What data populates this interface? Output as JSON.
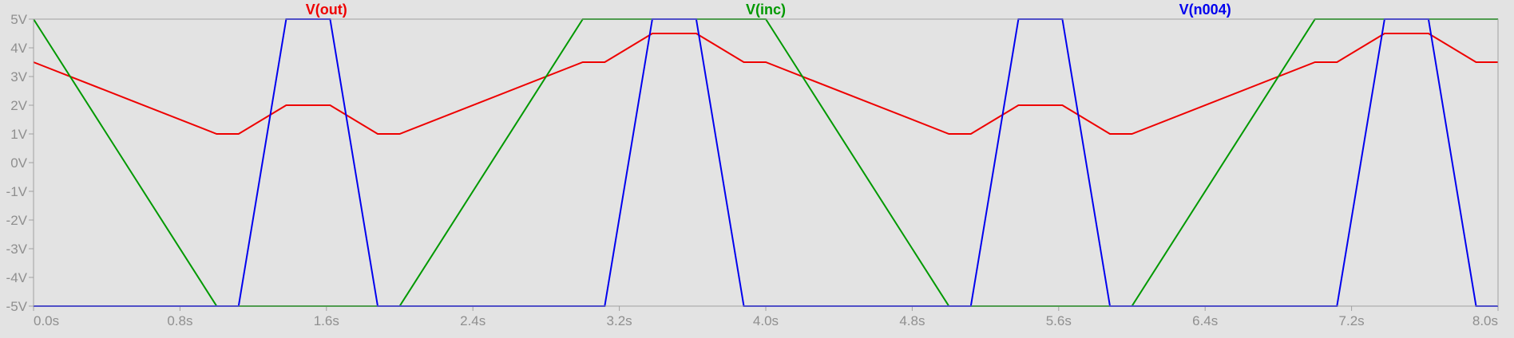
{
  "chart_data": {
    "type": "line",
    "background": "#e3e3e3",
    "grid": false,
    "x_unit": "s",
    "y_unit": "V",
    "xlim": [
      0,
      8
    ],
    "ylim": [
      -5,
      5
    ],
    "x_ticks": [
      {
        "value": 0.0,
        "label": "0.0s"
      },
      {
        "value": 0.8,
        "label": "0.8s"
      },
      {
        "value": 1.6,
        "label": "1.6s"
      },
      {
        "value": 2.4,
        "label": "2.4s"
      },
      {
        "value": 3.2,
        "label": "3.2s"
      },
      {
        "value": 4.0,
        "label": "4.0s"
      },
      {
        "value": 4.8,
        "label": "4.8s"
      },
      {
        "value": 5.6,
        "label": "5.6s"
      },
      {
        "value": 6.4,
        "label": "6.4s"
      },
      {
        "value": 7.2,
        "label": "7.2s"
      },
      {
        "value": 8.0,
        "label": "8.0s"
      }
    ],
    "y_ticks": [
      {
        "value": 5,
        "label": "5V"
      },
      {
        "value": 4,
        "label": "4V"
      },
      {
        "value": 3,
        "label": "3V"
      },
      {
        "value": 2,
        "label": "2V"
      },
      {
        "value": 1,
        "label": "1V"
      },
      {
        "value": 0,
        "label": "0V"
      },
      {
        "value": -1,
        "label": "-1V"
      },
      {
        "value": -2,
        "label": "-2V"
      },
      {
        "value": -3,
        "label": "-3V"
      },
      {
        "value": -4,
        "label": "-4V"
      },
      {
        "value": -5,
        "label": "-5V"
      }
    ],
    "series": [
      {
        "name": "V(out)",
        "color": "#ee0000",
        "x": [
          0.0,
          1.0,
          1.12,
          1.38,
          1.62,
          1.88,
          2.0,
          3.0,
          3.12,
          3.38,
          3.62,
          3.88,
          4.0,
          5.0,
          5.12,
          5.38,
          5.62,
          5.88,
          6.0,
          7.0,
          7.12,
          7.38,
          7.62,
          7.88,
          8.0
        ],
        "y": [
          3.5,
          1.0,
          1.0,
          2.0,
          2.0,
          1.0,
          1.0,
          3.5,
          3.5,
          4.5,
          4.5,
          3.5,
          3.5,
          1.0,
          1.0,
          2.0,
          2.0,
          1.0,
          1.0,
          3.5,
          3.5,
          4.5,
          4.5,
          3.5,
          3.5
        ]
      },
      {
        "name": "V(inc)",
        "color": "#009900",
        "x": [
          0.0,
          1.0,
          2.0,
          3.0,
          4.0,
          5.0,
          6.0,
          7.0,
          8.0
        ],
        "y": [
          5,
          -5,
          -5,
          5,
          5,
          -5,
          -5,
          5,
          5
        ]
      },
      {
        "name": "V(n004)",
        "color": "#0000ee",
        "x": [
          0.0,
          1.12,
          1.38,
          1.62,
          1.88,
          3.12,
          3.38,
          3.62,
          3.88,
          5.12,
          5.38,
          5.62,
          5.88,
          7.12,
          7.38,
          7.62,
          7.88,
          8.0
        ],
        "y": [
          -5,
          -5,
          5,
          5,
          -5,
          -5,
          5,
          5,
          -5,
          -5,
          5,
          5,
          -5,
          -5,
          5,
          5,
          -5,
          -5
        ]
      }
    ]
  }
}
